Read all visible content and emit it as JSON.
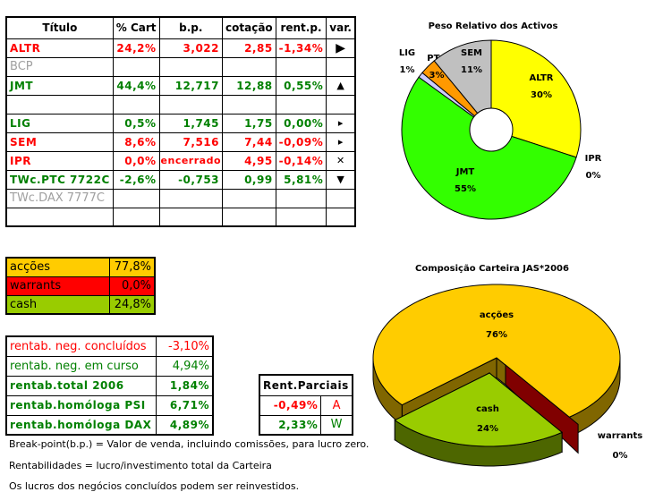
{
  "holdings_table": {
    "headers": [
      "Título",
      "% Cart",
      "b.p.",
      "cotação",
      "rent.p.",
      "var."
    ],
    "rows": [
      {
        "titulo": "ALTR",
        "cart": "24,2%",
        "bp": "3,022",
        "cotacao": "2,85",
        "rent": "-1,34%",
        "var": "▶",
        "var_icon": "arrow-right-icon",
        "color": "red"
      },
      {
        "titulo": "BCP",
        "cart": "",
        "bp": "",
        "cotacao": "",
        "rent": "",
        "var": "",
        "var_icon": "",
        "color": "gray"
      },
      {
        "titulo": "JMT",
        "cart": "44,4%",
        "bp": "12,717",
        "cotacao": "12,88",
        "rent": "0,55%",
        "var": "▲",
        "var_icon": "arrow-up-icon",
        "color": "green"
      },
      {
        "titulo": "",
        "cart": "",
        "bp": "",
        "cotacao": "",
        "rent": "",
        "var": "",
        "var_icon": "",
        "color": "gray"
      },
      {
        "titulo": "LIG",
        "cart": "0,5%",
        "bp": "1,745",
        "cotacao": "1,75",
        "rent": "0,00%",
        "var": "▸",
        "var_icon": "arrow-right-icon",
        "color": "green"
      },
      {
        "titulo": "SEM",
        "cart": "8,6%",
        "bp": "7,516",
        "cotacao": "7,44",
        "rent": "-0,09%",
        "var": "▸",
        "var_icon": "arrow-right-icon",
        "color": "red"
      },
      {
        "titulo": "IPR",
        "cart": "0,0%",
        "bp": "encerrado",
        "cotacao": "4,95",
        "rent": "-0,14%",
        "var": "✕",
        "var_icon": "close-icon",
        "color": "red"
      },
      {
        "titulo": "TWc.PTC 7722C",
        "cart": "-2,6%",
        "bp": "-0,753",
        "cotacao": "0,99",
        "rent": "5,81%",
        "var": "▼",
        "var_icon": "arrow-down-icon",
        "color": "green"
      },
      {
        "titulo": "TWc.DAX 7777C",
        "cart": "",
        "bp": "",
        "cotacao": "",
        "rent": "",
        "var": "",
        "var_icon": "",
        "color": "gray"
      },
      {
        "titulo": "",
        "cart": "",
        "bp": "",
        "cotacao": "",
        "rent": "",
        "var": "",
        "var_icon": "",
        "color": "gray"
      }
    ]
  },
  "allocation_table": [
    {
      "label": "acções",
      "value": "77,8%",
      "bg": "#ffcc00"
    },
    {
      "label": "warrants",
      "value": "0,0%",
      "bg": "#ff0000"
    },
    {
      "label": "cash",
      "value": "24,8%",
      "bg": "#99cc00"
    }
  ],
  "returns_table": [
    {
      "label": "rentab. neg. concluídos",
      "value": "-3,10%",
      "color": "red",
      "bold": false
    },
    {
      "label": "rentab. neg. em curso",
      "value": "4,94%",
      "color": "green",
      "bold": false
    },
    {
      "label": "rentab.total 2006",
      "value": "1,84%",
      "color": "green",
      "bold": true
    },
    {
      "label": "rentab.homóloga PSI",
      "value": "6,71%",
      "color": "green",
      "bold": true
    },
    {
      "label": "rentab.homóloga DAX",
      "value": "4,89%",
      "color": "green",
      "bold": true
    }
  ],
  "partial_returns": {
    "title": "Rent.Parciais",
    "rows": [
      {
        "value": "-0,49%",
        "tag": "A",
        "color": "red"
      },
      {
        "value": "2,33%",
        "tag": "W",
        "color": "green"
      }
    ]
  },
  "notes": [
    "Break-point(b.p.) = Valor de venda, incluindo comissões, para lucro zero.",
    "Rentabilidades = lucro/investimento total da Carteira",
    "Os lucros dos negócios concluídos podem ser reinvestidos."
  ],
  "chart_data": [
    {
      "type": "pie",
      "style": "doughnut",
      "title": "Peso Relativo dos Activos",
      "slices": [
        {
          "label": "ALTR",
          "value": 30,
          "display": "30%",
          "color": "#ffff00"
        },
        {
          "label": "IPR",
          "value": 0,
          "display": "0%",
          "color": "#ff0000"
        },
        {
          "label": "JMT",
          "value": 55,
          "display": "55%",
          "color": "#33ff00"
        },
        {
          "label": "LIG",
          "value": 1,
          "display": "1%",
          "color": "#ccccff"
        },
        {
          "label": "PTC",
          "value": 3,
          "display": "3%",
          "color": "#ff9900"
        },
        {
          "label": "SEM",
          "value": 11,
          "display": "11%",
          "color": "#c0c0c0"
        }
      ]
    },
    {
      "type": "pie",
      "style": "3d-exploded",
      "title": "Composição Carteira JAS*2006",
      "slices": [
        {
          "label": "acções",
          "value": 76,
          "display": "76%",
          "color": "#ffcc00",
          "side_color": "#806600"
        },
        {
          "label": "cash",
          "value": 24,
          "display": "24%",
          "color": "#99cc00",
          "side_color": "#4d6600"
        },
        {
          "label": "warrants",
          "value": 0,
          "display": "0%",
          "color": "#800000",
          "side_color": "#800000"
        }
      ]
    }
  ]
}
